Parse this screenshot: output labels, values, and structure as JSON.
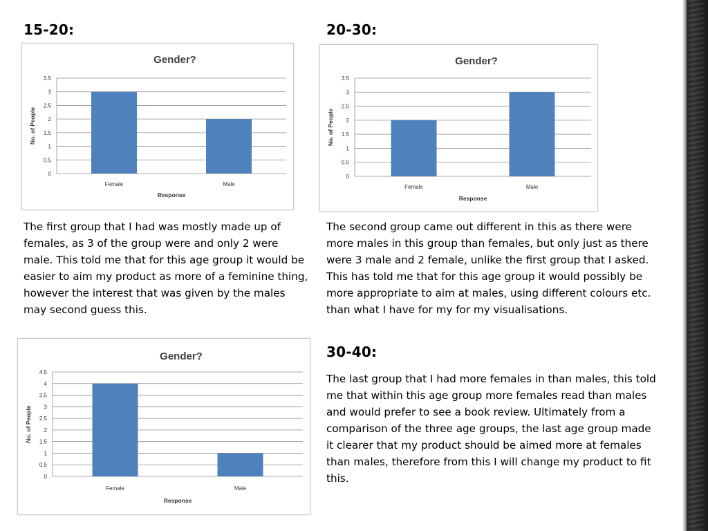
{
  "sections": [
    {
      "heading": "15-20:",
      "paragraph": "The first group that I had was mostly made up of females, as 3 of the group were and only 2 were male. This told me that for this age group it would be easier to aim my product as more of a feminine thing, however the interest that was given by the males may second guess this."
    },
    {
      "heading": "20-30:",
      "paragraph": "The second group came out different in this as there were more males in this group than females, but only just as there were 3 male and 2 female, unlike the first group that I asked. This has told me that for this age group it would possibly be more appropriate to aim at males, using different colours etc. than what I have for my for my visualisations."
    },
    {
      "heading": "30-40:",
      "paragraph": "The last group that I had more females in than males, this told me that within this age group more females read than males and would prefer to see a book review. Ultimately from a comparison of the three age groups, the last age group made it clearer that my product should be aimed more at females than males, therefore from this I will change my product to fit this."
    }
  ],
  "colors": {
    "bar": "#4f81bd",
    "grid": "#8c8c8c",
    "title": "#404040"
  },
  "chart_data": [
    {
      "type": "bar",
      "title": "Gender?",
      "xlabel": "Response",
      "ylabel": "No. of People",
      "categories": [
        "Female",
        "Male"
      ],
      "values": [
        3,
        2
      ],
      "ylim": [
        0,
        3.5
      ],
      "yticks": [
        "0",
        "0.5",
        "1",
        "1.5",
        "2",
        "2.5",
        "3",
        "3.5"
      ],
      "grid": true
    },
    {
      "type": "bar",
      "title": "Gender?",
      "xlabel": "Response",
      "ylabel": "No. of People",
      "categories": [
        "Female",
        "Male"
      ],
      "values": [
        2,
        3
      ],
      "ylim": [
        0,
        3.5
      ],
      "yticks": [
        "0",
        "0.5",
        "1",
        "1.5",
        "2",
        "2.5",
        "3",
        "3.5"
      ],
      "grid": true
    },
    {
      "type": "bar",
      "title": "Gender?",
      "xlabel": "Response",
      "ylabel": "No. of People",
      "categories": [
        "Female",
        "Male"
      ],
      "values": [
        4,
        1
      ],
      "ylim": [
        0,
        4.5
      ],
      "yticks": [
        "0",
        "0.5",
        "1",
        "1.5",
        "2",
        "2.5",
        "3",
        "3.5",
        "4",
        "4.5"
      ],
      "grid": true
    }
  ]
}
